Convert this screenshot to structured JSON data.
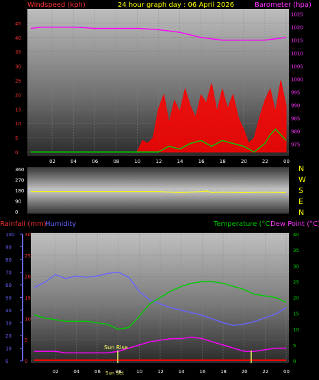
{
  "header": {
    "title": "24 hour graph day : 06 April 2026",
    "windspeed_label": "Windspeed (kph)",
    "barometer_label": "Barometer (hpa)"
  },
  "direction": {
    "compass_letters": [
      "N",
      "W",
      "S",
      "E",
      "N"
    ]
  },
  "lower": {
    "rainfall_label": "Rainfall (mm)",
    "humidity_label": "Humidity",
    "temperature_label": "Temperature (°C)",
    "dewpoint_label": "Dew Point (°C)",
    "sunrise_label": "Sun Rise",
    "sunset_label": "Sun Set"
  },
  "colors": {
    "windspeed": "#ff0000",
    "gust": "#00cc00",
    "barometer": "#ff00ff",
    "direction": "#ffff00",
    "rainfall": "#ff0000",
    "humidity": "#6666ff",
    "temperature": "#00cc00",
    "dewpoint": "#ff00ff",
    "sunrise": "#ffff66"
  },
  "chart_data": [
    {
      "type": "line",
      "name": "wind-barometer",
      "x_ticks": [
        "02",
        "04",
        "06",
        "08",
        "10",
        "12",
        "14",
        "16",
        "18",
        "20",
        "22",
        "00"
      ],
      "y_left_ticks": [
        0,
        5,
        10,
        15,
        20,
        25,
        30,
        35,
        40,
        45
      ],
      "y_left_label": "Windspeed (kph)",
      "y_left_lim": [
        0,
        50
      ],
      "y_right_ticks": [
        975,
        980,
        985,
        990,
        995,
        1000,
        1005,
        1010,
        1015,
        1020,
        1025
      ],
      "y_right_label": "Barometer (hpa)",
      "y_right_lim": [
        972,
        1027
      ],
      "series": [
        {
          "name": "Windspeed",
          "x": [
            0,
            1,
            2,
            3,
            4,
            5,
            6,
            7,
            8,
            9,
            10,
            10.5,
            11,
            11.5,
            12,
            12.5,
            13,
            13.5,
            14,
            14.5,
            15,
            15.5,
            16,
            16.5,
            17,
            17.5,
            18,
            18.5,
            19,
            19.5,
            20,
            20.5,
            21,
            21.5,
            22,
            22.5,
            23,
            23.5,
            24
          ],
          "values": [
            0,
            0,
            0,
            0,
            0,
            0,
            0,
            0,
            0,
            0,
            0,
            4,
            3,
            5,
            15,
            20,
            10,
            18,
            14,
            22,
            16,
            12,
            20,
            17,
            24,
            14,
            22,
            15,
            20,
            12,
            8,
            3,
            5,
            12,
            18,
            22,
            14,
            25,
            16
          ]
        },
        {
          "name": "Gust",
          "x": [
            0,
            10,
            11,
            12,
            13,
            14,
            15,
            16,
            17,
            18,
            19,
            20,
            21,
            22,
            22.5,
            23,
            23.5,
            24
          ],
          "values": [
            0,
            0,
            0,
            0,
            2,
            1,
            3,
            4,
            2,
            4,
            3,
            2,
            0,
            3,
            6,
            8,
            6,
            4
          ]
        },
        {
          "name": "Barometer",
          "x": [
            0,
            1,
            2,
            3,
            4,
            5,
            6,
            7,
            8,
            9,
            10,
            11,
            12,
            13,
            14,
            15,
            16,
            17,
            18,
            19,
            20,
            21,
            22,
            23,
            24
          ],
          "values": [
            1019.5,
            1020,
            1020,
            1020,
            1020,
            1019.8,
            1019.5,
            1019.5,
            1019.5,
            1019.5,
            1019.5,
            1019.3,
            1019,
            1018.5,
            1018,
            1017,
            1016,
            1015.5,
            1015,
            1015,
            1015,
            1015,
            1015,
            1015.5,
            1016
          ]
        }
      ]
    },
    {
      "type": "line",
      "name": "wind-direction",
      "y_ticks": [
        0,
        90,
        180,
        270,
        360
      ],
      "y_lim": [
        0,
        360
      ],
      "compass": [
        "N",
        "W",
        "S",
        "E",
        "N"
      ],
      "series": [
        {
          "name": "Direction",
          "x": [
            0,
            4,
            8,
            12,
            14,
            15,
            16,
            16.5,
            17,
            18,
            20,
            22,
            24
          ],
          "values": [
            170,
            170,
            170,
            170,
            160,
            165,
            170,
            175,
            160,
            165,
            160,
            165,
            160
          ]
        }
      ]
    },
    {
      "type": "line",
      "name": "rain-humidity-temperature",
      "x_ticks": [
        "02",
        "04",
        "06",
        "08",
        "10",
        "12",
        "14",
        "16",
        "18",
        "20",
        "22",
        "00"
      ],
      "y_humidity_ticks": [
        0,
        10,
        20,
        30,
        40,
        50,
        60,
        70,
        80,
        90,
        100
      ],
      "y_humidity_lim": [
        0,
        100
      ],
      "y_rain_ticks": [
        0,
        5,
        10,
        15,
        20,
        25,
        30
      ],
      "y_rain_lim": [
        0,
        30
      ],
      "y_temp_ticks": [
        0,
        5,
        10,
        15,
        20,
        25,
        30,
        35,
        40
      ],
      "y_temp_lim": [
        0,
        40
      ],
      "series": [
        {
          "name": "Humidity",
          "x": [
            0,
            1,
            2,
            3,
            4,
            5,
            6,
            7,
            8,
            9,
            10,
            11,
            12,
            13,
            14,
            15,
            16,
            17,
            18,
            19,
            20,
            21,
            22,
            23,
            24
          ],
          "values": [
            58,
            62,
            68,
            65,
            67,
            66,
            67,
            69,
            70,
            66,
            55,
            48,
            45,
            42,
            40,
            38,
            36,
            33,
            30,
            28,
            29,
            31,
            34,
            37,
            42
          ]
        },
        {
          "name": "Rainfall",
          "x": [
            0,
            24
          ],
          "values": [
            0,
            0
          ]
        },
        {
          "name": "Temperature",
          "x": [
            0,
            1,
            2,
            3,
            4,
            5,
            6,
            7,
            8,
            9,
            10,
            11,
            12,
            13,
            14,
            15,
            16,
            17,
            18,
            19,
            20,
            21,
            22,
            23,
            24
          ],
          "values": [
            14.5,
            13.5,
            13,
            12.5,
            12.5,
            12.5,
            12,
            11.5,
            10,
            10.5,
            14,
            18,
            20,
            22,
            23.5,
            24.5,
            25,
            25,
            24.5,
            23.5,
            22.5,
            21,
            20.5,
            20,
            18.5
          ]
        },
        {
          "name": "Dew Point",
          "x": [
            0,
            1,
            2,
            3,
            4,
            5,
            6,
            7,
            8,
            9,
            10,
            11,
            12,
            13,
            14,
            15,
            16,
            17,
            18,
            19,
            20,
            21,
            22,
            23,
            24
          ],
          "values": [
            3,
            3,
            3,
            2.5,
            2.5,
            2.5,
            2.5,
            2.5,
            3,
            4,
            5,
            6,
            6.5,
            7,
            7,
            7.5,
            7,
            6,
            5,
            4,
            3,
            3,
            3.5,
            4,
            4
          ]
        }
      ]
    }
  ]
}
